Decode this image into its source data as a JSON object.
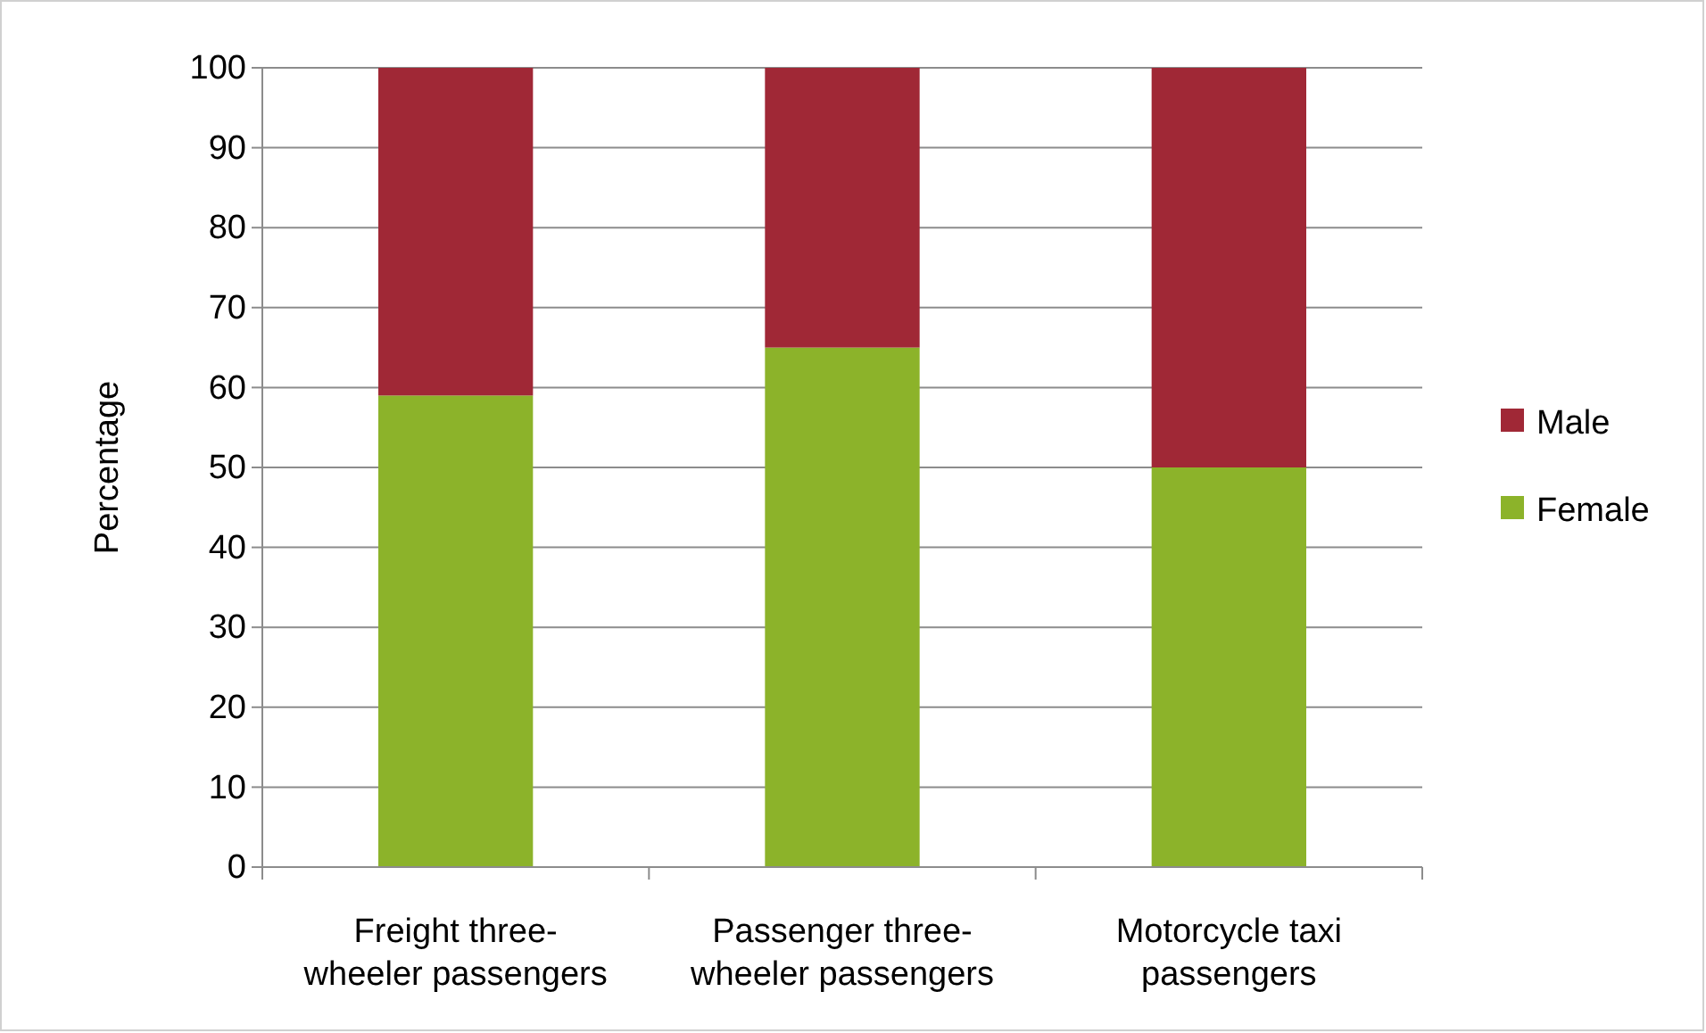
{
  "chart_data": {
    "type": "bar",
    "stacked": true,
    "ylabel": "Percentage",
    "categories": [
      "Freight three-wheeler passengers",
      "Passenger three-wheeler passengers",
      "Motorcycle taxi passengers"
    ],
    "series": [
      {
        "name": "Female",
        "color": "#8cb32a",
        "values": [
          59,
          65,
          50
        ]
      },
      {
        "name": "Male",
        "color": "#a02836",
        "values": [
          41,
          35,
          50
        ]
      }
    ],
    "ylim": [
      0,
      100
    ],
    "yticks": [
      0,
      10,
      20,
      30,
      40,
      50,
      60,
      70,
      80,
      90,
      100
    ],
    "grid": "y",
    "legend": "right"
  }
}
